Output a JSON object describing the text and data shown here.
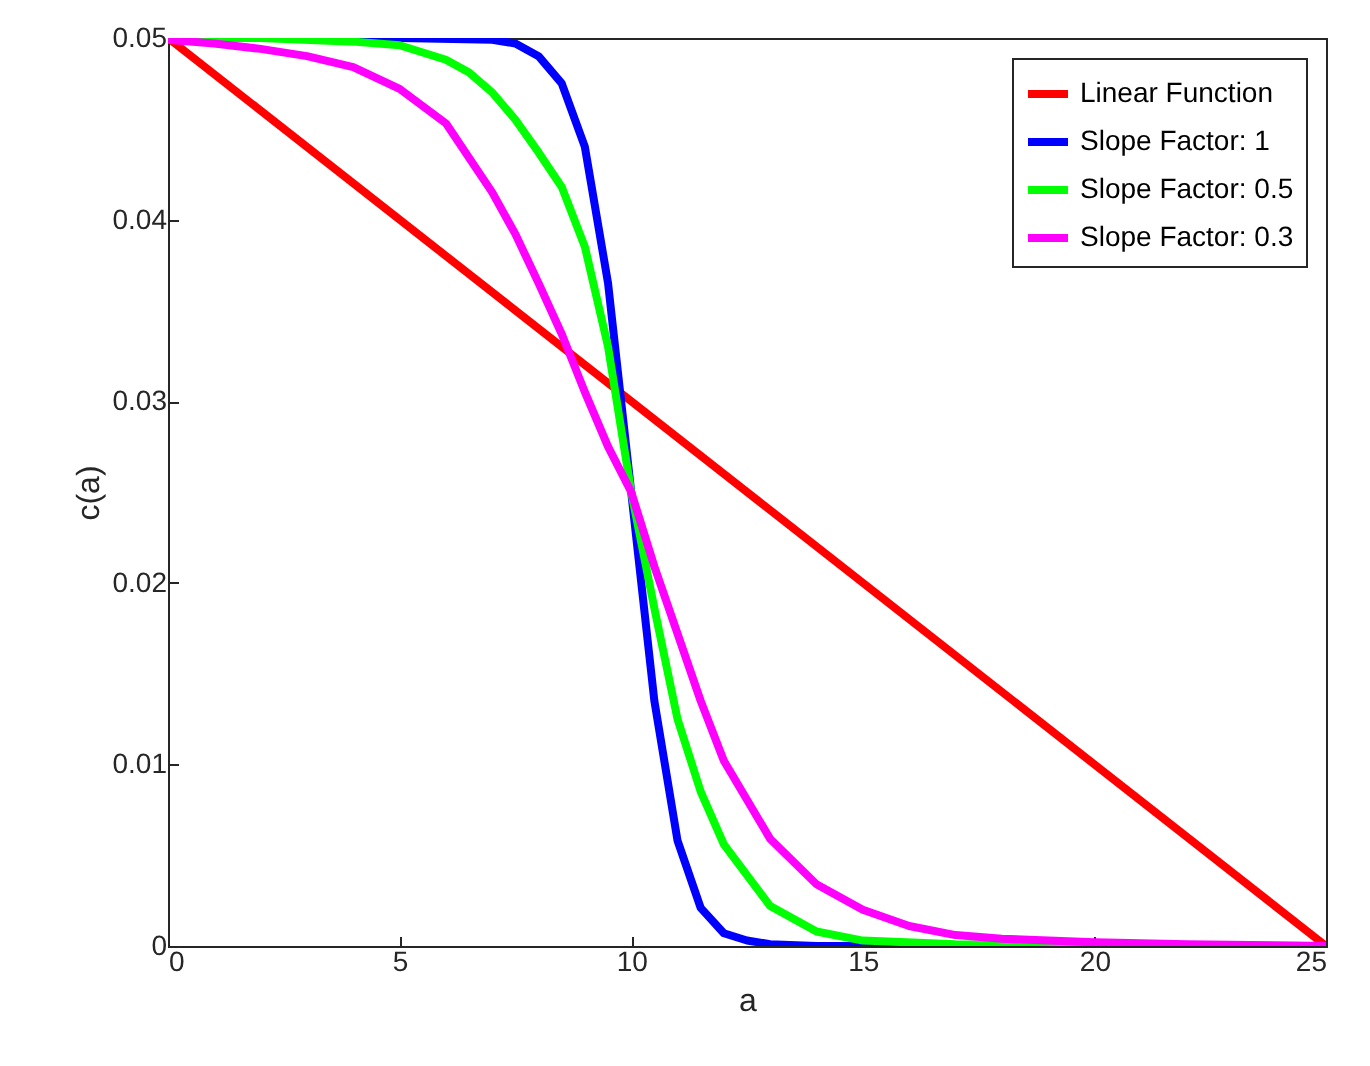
{
  "chart_data": {
    "type": "line",
    "xlabel": "a",
    "ylabel": "c(a)",
    "xlim": [
      0,
      25
    ],
    "ylim": [
      0,
      0.05
    ],
    "xticks": [
      0,
      5,
      10,
      15,
      20,
      25
    ],
    "yticks": [
      0,
      0.01,
      0.02,
      0.03,
      0.04,
      0.05
    ],
    "grid": false,
    "legend": "top right",
    "line_style": "solid",
    "marker": "none",
    "series": [
      {
        "name": "Linear Function",
        "color": "#ff0000",
        "x": [
          0,
          25
        ],
        "values": [
          0.05,
          0
        ]
      },
      {
        "name": "Slope Factor: 1",
        "color": "#0000ff",
        "x": [
          0,
          5,
          7,
          7.5,
          8,
          8.5,
          9,
          9.5,
          10,
          10.5,
          11,
          11.5,
          12,
          12.5,
          13,
          14,
          25
        ],
        "values": [
          0.05,
          0.05,
          0.0499,
          0.0497,
          0.049,
          0.0475,
          0.044,
          0.0365,
          0.025,
          0.0135,
          0.0058,
          0.0021,
          0.0007,
          0.0003,
          0.0001,
          0,
          0
        ]
      },
      {
        "name": "Slope Factor: 0.5",
        "color": "#00ff00",
        "x": [
          0,
          2,
          4,
          5,
          6,
          6.5,
          7,
          7.5,
          8,
          8.5,
          9,
          9.5,
          10,
          10.5,
          11,
          11.5,
          12,
          13,
          14,
          15,
          17,
          25
        ],
        "values": [
          0.05,
          0.05,
          0.0498,
          0.0496,
          0.0488,
          0.0481,
          0.047,
          0.0455,
          0.0437,
          0.0418,
          0.0385,
          0.033,
          0.025,
          0.0186,
          0.0125,
          0.0085,
          0.0056,
          0.0022,
          0.0008,
          0.0003,
          0.0001,
          0
        ]
      },
      {
        "name": "Slope Factor: 0.3",
        "color": "#ff00ff",
        "x": [
          0,
          1,
          2,
          3,
          4,
          5,
          6,
          7,
          7.5,
          8,
          8.5,
          9,
          9.5,
          10,
          10.5,
          11,
          11.5,
          12,
          13,
          14,
          15,
          16,
          17,
          18,
          20,
          22,
          25
        ],
        "values": [
          0.0499,
          0.0497,
          0.0494,
          0.049,
          0.0484,
          0.0472,
          0.0453,
          0.0415,
          0.0392,
          0.0365,
          0.0337,
          0.0305,
          0.0275,
          0.025,
          0.0209,
          0.0172,
          0.0135,
          0.0102,
          0.0059,
          0.0034,
          0.002,
          0.0011,
          0.0006,
          0.0004,
          0.0002,
          0.0001,
          0
        ]
      }
    ]
  }
}
